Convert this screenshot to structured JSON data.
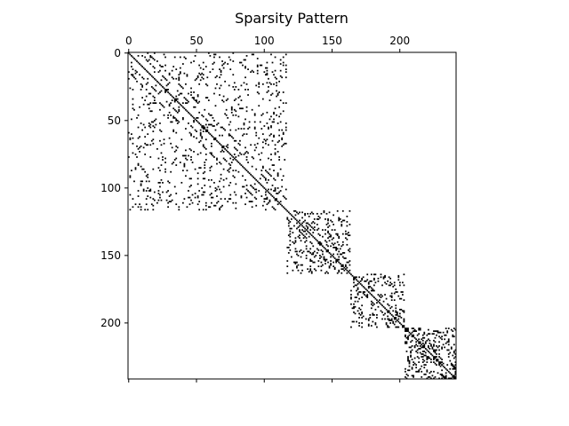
{
  "chart_data": {
    "type": "heatmap",
    "subtype": "spy",
    "title": "Sparsity Pattern",
    "matrix_size": [
      242,
      242
    ],
    "x_ticks": [
      0,
      50,
      100,
      150,
      200
    ],
    "y_ticks": [
      0,
      50,
      100,
      150,
      200
    ],
    "x_axis_position": "top",
    "grid": false,
    "marker_color": "#000000",
    "blocks": [
      {
        "rows": [
          0,
          117
        ],
        "cols": [
          0,
          117
        ],
        "density": 0.055,
        "diagonal_bands": [
          -14,
          -8,
          8,
          14
        ]
      },
      {
        "rows": [
          117,
          164
        ],
        "cols": [
          117,
          164
        ],
        "density": 0.14,
        "diagonal_bands": [
          -6,
          6
        ]
      },
      {
        "rows": [
          164,
          204
        ],
        "cols": [
          164,
          204
        ],
        "density": 0.13,
        "diagonal_bands": [
          -5,
          5
        ]
      },
      {
        "rows": [
          204,
          242
        ],
        "cols": [
          204,
          242
        ],
        "density": 0.2,
        "diagonal_bands": [
          -4,
          4
        ]
      }
    ]
  }
}
